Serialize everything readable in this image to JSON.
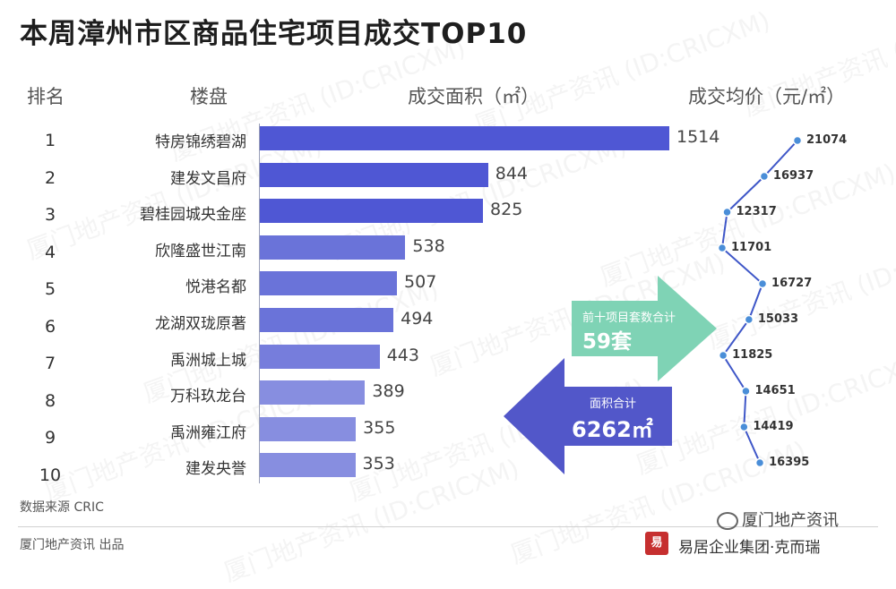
{
  "title": "本周漳州市区商品住宅项目成交TOP10",
  "headers": {
    "rank": "排名",
    "project": "楼盘",
    "area": "成交面积（㎡）",
    "price": "成交均价（元/㎡）"
  },
  "chart_data": [
    {
      "type": "bar",
      "orientation": "horizontal",
      "title": "",
      "xlabel": "成交面积（㎡）",
      "categories": [
        "特房锦绣碧湖",
        "建发文昌府",
        "碧桂园城央金座",
        "欣隆盛世江南",
        "悦港名都",
        "龙湖双珑原著",
        "禹洲城上城",
        "万科玖龙台",
        "禹洲雍江府",
        "建发央誉"
      ],
      "ranks": [
        "1",
        "2",
        "3",
        "4",
        "5",
        "6",
        "7",
        "8",
        "9",
        "10"
      ],
      "values": [
        1514,
        844,
        825,
        538,
        507,
        494,
        443,
        389,
        355,
        353
      ],
      "colors": [
        "#4f57d4",
        "#4f57d4",
        "#4f57d4",
        "#6a73d9",
        "#6a73d9",
        "#6a73d9",
        "#767ddc",
        "#878ee0",
        "#878ee0",
        "#878ee0"
      ]
    },
    {
      "type": "line",
      "title": "",
      "ylabel": "成交均价（元/㎡）",
      "categories": [
        "特房锦绣碧湖",
        "建发文昌府",
        "碧桂园城央金座",
        "欣隆盛世江南",
        "悦港名都",
        "龙湖双珑原著",
        "禹洲城上城",
        "万科玖龙台",
        "禹洲雍江府",
        "建发央誉"
      ],
      "values": [
        21074,
        16937,
        12317,
        11701,
        16727,
        15033,
        11825,
        14651,
        14419,
        16395
      ],
      "line_color": "#3f57c8"
    }
  ],
  "callouts": {
    "units": {
      "label": "前十项目套数合计",
      "value": "59套",
      "color": "#7fd3b5"
    },
    "area": {
      "label": "面积合计",
      "value": "6262㎡",
      "color": "#5257c9"
    }
  },
  "footer": {
    "source": "数据来源 CRIC",
    "publisher": "厦门地产资讯 出品",
    "wechat": "厦门地产资讯",
    "brand": "易居企业集团·克而瑞",
    "seal": "易"
  },
  "watermark": "厦门地产资讯 (ID:CRICXM)"
}
